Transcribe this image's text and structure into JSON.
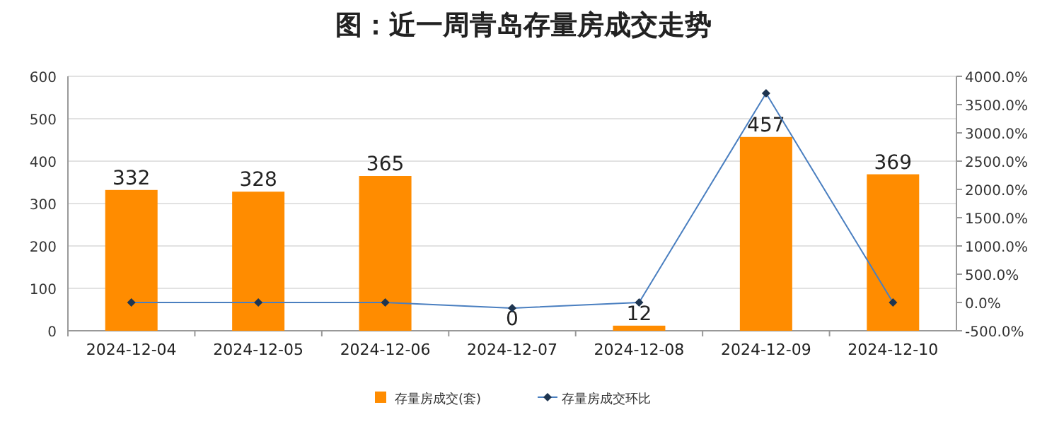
{
  "chart_data": {
    "type": "bar",
    "title": "图：近一周青岛存量房成交走势",
    "categories": [
      "2024-12-04",
      "2024-12-05",
      "2024-12-06",
      "2024-12-07",
      "2024-12-08",
      "2024-12-09",
      "2024-12-10"
    ],
    "series": [
      {
        "name": "存量房成交(套)",
        "color": "#ff8c00",
        "values": [
          332,
          328,
          365,
          0,
          12,
          457,
          369
        ],
        "value_labels": [
          "332",
          "328",
          "365",
          "0",
          "12",
          "457",
          "369"
        ]
      },
      {
        "name": "存量房成交环比",
        "type": "line",
        "axis": "y2",
        "color": "#4a7fc0",
        "marker": "diamond",
        "values": [
          0,
          0,
          0,
          -100,
          0,
          3700,
          0
        ]
      }
    ],
    "ylim": [
      0,
      600
    ],
    "yticks": [
      0,
      100,
      200,
      300,
      400,
      500,
      600
    ],
    "y2lim": [
      -500,
      4000
    ],
    "y2ticks": [
      {
        "value": -500,
        "label": "-500.0%"
      },
      {
        "value": 0,
        "label": "0.0%"
      },
      {
        "value": 500,
        "label": "500.0%"
      },
      {
        "value": 1000,
        "label": "1000.0%"
      },
      {
        "value": 1500,
        "label": "1500.0%"
      },
      {
        "value": 2000,
        "label": "2000.0%"
      },
      {
        "value": 2500,
        "label": "2500.0%"
      },
      {
        "value": 3000,
        "label": "3000.0%"
      },
      {
        "value": 3500,
        "label": "3500.0%"
      },
      {
        "value": 4000,
        "label": "4000.0%"
      }
    ],
    "grid": "y",
    "legend": "bottom"
  }
}
